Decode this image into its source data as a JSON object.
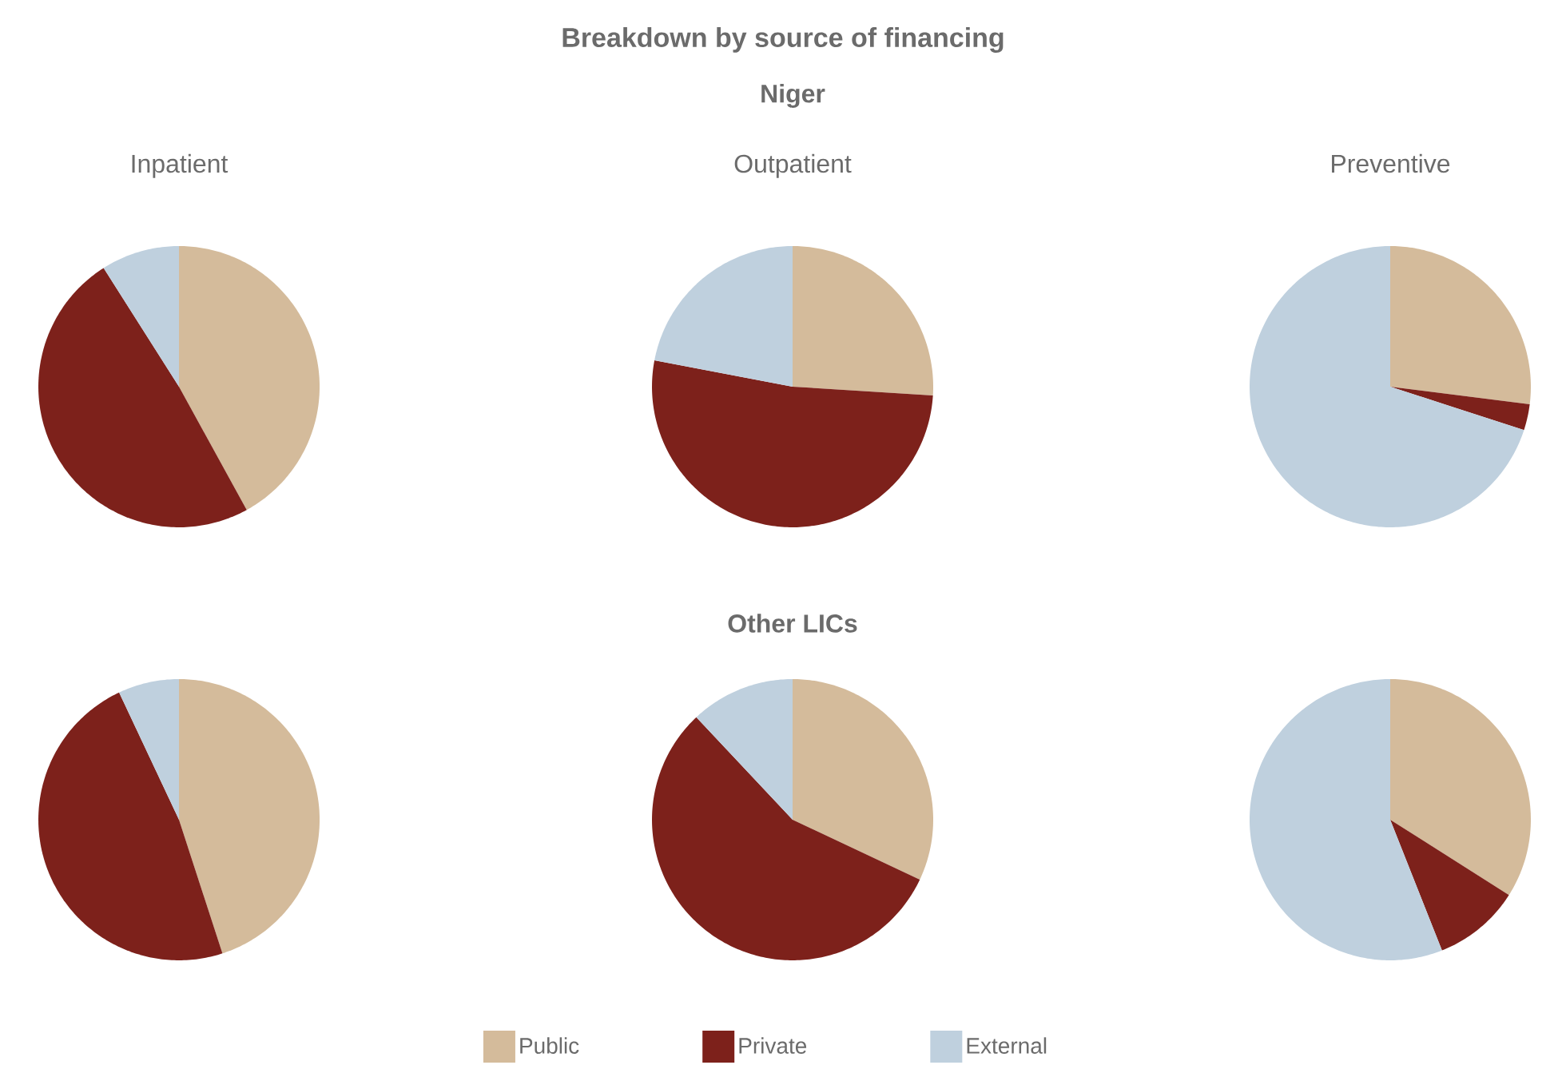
{
  "chart_data": [
    {
      "type": "other",
      "title": "Breakdown by source of financing"
    },
    {
      "type": "pie",
      "title": "Inpatient",
      "values": [
        42,
        49,
        9
      ],
      "colors": [
        "#d4bb9b",
        "#7d211b",
        "#bfd0de"
      ]
    },
    {
      "type": "pie",
      "title": "Outpatient",
      "subtitle": "Niger",
      "values": [
        26,
        52,
        22
      ],
      "colors": [
        "#d4bb9b",
        "#7d211b",
        "#bfd0de"
      ]
    },
    {
      "type": "pie",
      "title": "Preventive",
      "values": [
        27,
        3,
        70
      ],
      "colors": [
        "#d4bb9b",
        "#7d211b",
        "#bfd0de"
      ]
    },
    {
      "type": "pie",
      "values": [
        45,
        48,
        7
      ],
      "colors": [
        "#d4bb9b",
        "#7d211b",
        "#bfd0de"
      ]
    },
    {
      "type": "pie",
      "subtitle": "Other LICs",
      "values": [
        32,
        56,
        12
      ],
      "colors": [
        "#d4bb9b",
        "#7d211b",
        "#bfd0de"
      ]
    },
    {
      "type": "pie",
      "categories": [
        "Public",
        "Private",
        "External"
      ],
      "values": [
        34,
        10,
        56
      ],
      "colors": [
        "#d4bb9b",
        "#7d211b",
        "#bfd0de"
      ],
      "legend": "bottom"
    }
  ]
}
